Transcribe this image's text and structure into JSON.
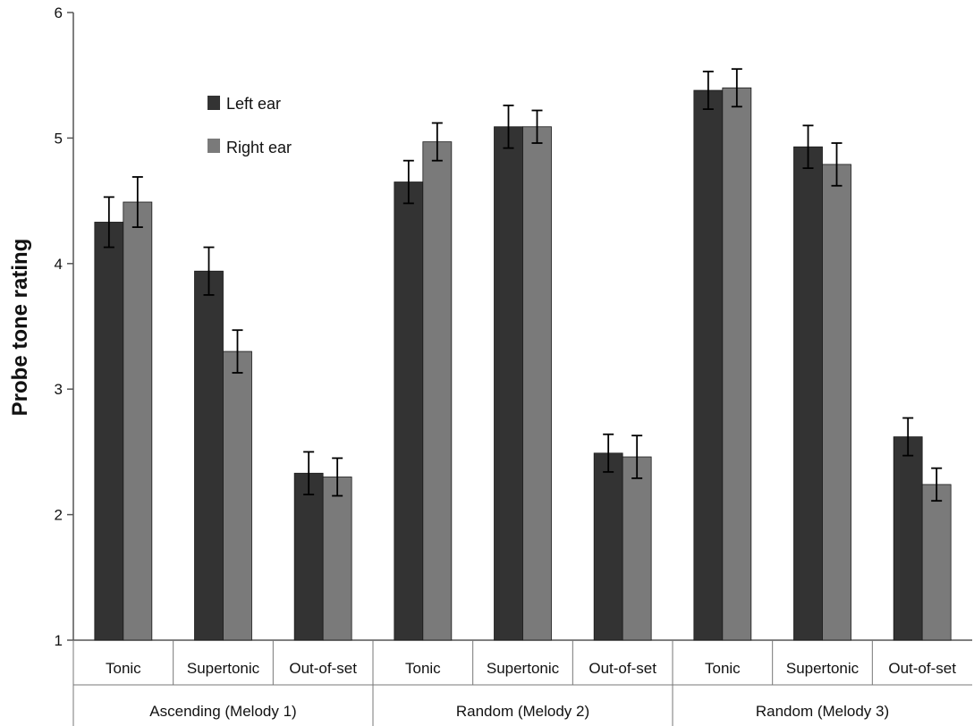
{
  "chart_data": {
    "type": "bar",
    "ylabel": "Probe tone rating",
    "xlabel": "",
    "title": "",
    "ylim": [
      1,
      6
    ],
    "yticks": [
      1,
      2,
      3,
      4,
      5,
      6
    ],
    "grid": false,
    "legend_position": "upper-left",
    "groups": [
      {
        "name": "Ascending (Melody 1)",
        "categories": [
          "Tonic",
          "Supertonic",
          "Out-of-set"
        ]
      },
      {
        "name": "Random (Melody 2)",
        "categories": [
          "Tonic",
          "Supertonic",
          "Out-of-set"
        ]
      },
      {
        "name": "Random (Melody 3)",
        "categories": [
          "Tonic",
          "Supertonic",
          "Out-of-set"
        ]
      }
    ],
    "series": [
      {
        "name": "Left ear",
        "color": "#333333",
        "values": [
          4.33,
          3.94,
          2.33,
          4.65,
          5.09,
          2.49,
          5.38,
          4.93,
          2.62
        ],
        "errors": [
          0.2,
          0.19,
          0.17,
          0.17,
          0.17,
          0.15,
          0.15,
          0.17,
          0.15
        ]
      },
      {
        "name": "Right ear",
        "color": "#7a7a7a",
        "values": [
          4.49,
          3.3,
          2.3,
          4.97,
          5.09,
          2.46,
          5.4,
          4.79,
          2.24
        ],
        "errors": [
          0.2,
          0.17,
          0.15,
          0.15,
          0.13,
          0.17,
          0.15,
          0.17,
          0.13
        ]
      }
    ]
  }
}
